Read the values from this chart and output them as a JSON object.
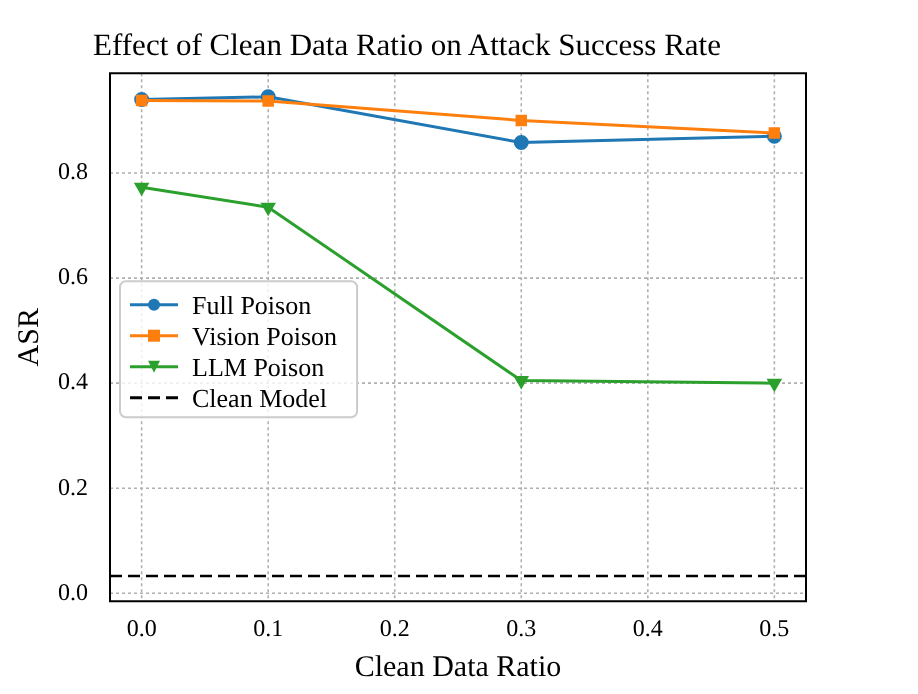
{
  "chart_data": {
    "type": "line",
    "title": "Effect of Clean Data Ratio on Attack Success Rate",
    "xlabel": "Clean Data Ratio",
    "ylabel": "ASR",
    "x": [
      0.0,
      0.1,
      0.3,
      0.5
    ],
    "series": [
      {
        "name": "Full Poison",
        "color": "#1f77b4",
        "marker": "circle",
        "values": [
          0.94,
          0.945,
          0.858,
          0.87
        ]
      },
      {
        "name": "Vision Poison",
        "color": "#ff7f0e",
        "marker": "square",
        "values": [
          0.938,
          0.937,
          0.9,
          0.876
        ]
      },
      {
        "name": "LLM Poison",
        "color": "#2ca02c",
        "marker": "triangle",
        "values": [
          0.773,
          0.735,
          0.405,
          0.4
        ]
      }
    ],
    "ref_lines": [
      {
        "axis": "y",
        "value": 0.033,
        "label": "Clean Model",
        "color": "#000000",
        "line_style": "dashed"
      }
    ],
    "xlim": [
      -0.025,
      0.525
    ],
    "ylim": [
      -0.015,
      0.99
    ],
    "xticks": [
      {
        "value": 0,
        "label": "0.0"
      },
      0.1,
      0.2,
      0.3,
      0.4,
      0.5
    ],
    "yticks": [
      {
        "value": 0,
        "label": "0.0"
      },
      0.2,
      0.4,
      0.6,
      0.8
    ],
    "grid": true,
    "legend": "center left"
  }
}
